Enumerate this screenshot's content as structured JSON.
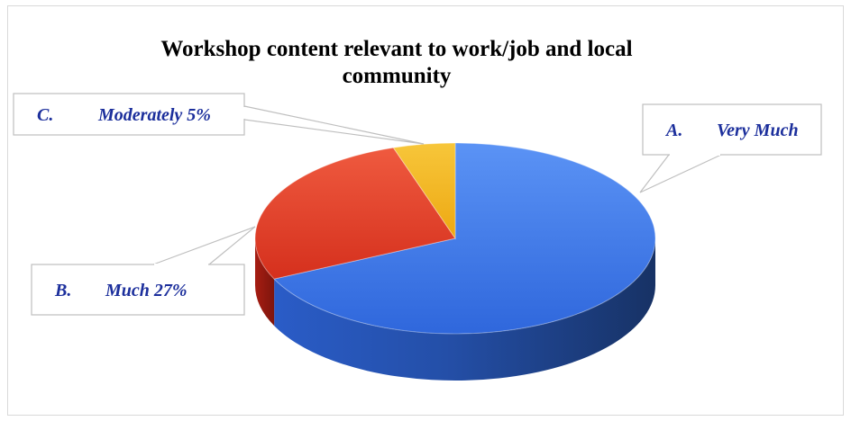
{
  "chart_data": {
    "type": "pie",
    "title": "Workshop content relevant to work/job and local community",
    "categories": [
      "A.",
      "B.",
      "C."
    ],
    "category_names": [
      "Very Much",
      "Much 27%",
      "Moderately 5%"
    ],
    "values": [
      68,
      27,
      5
    ],
    "colors": [
      "#3f7be8",
      "#e43a26",
      "#f2b21b"
    ],
    "label_color": "#1c2f9c",
    "three_d": true
  }
}
